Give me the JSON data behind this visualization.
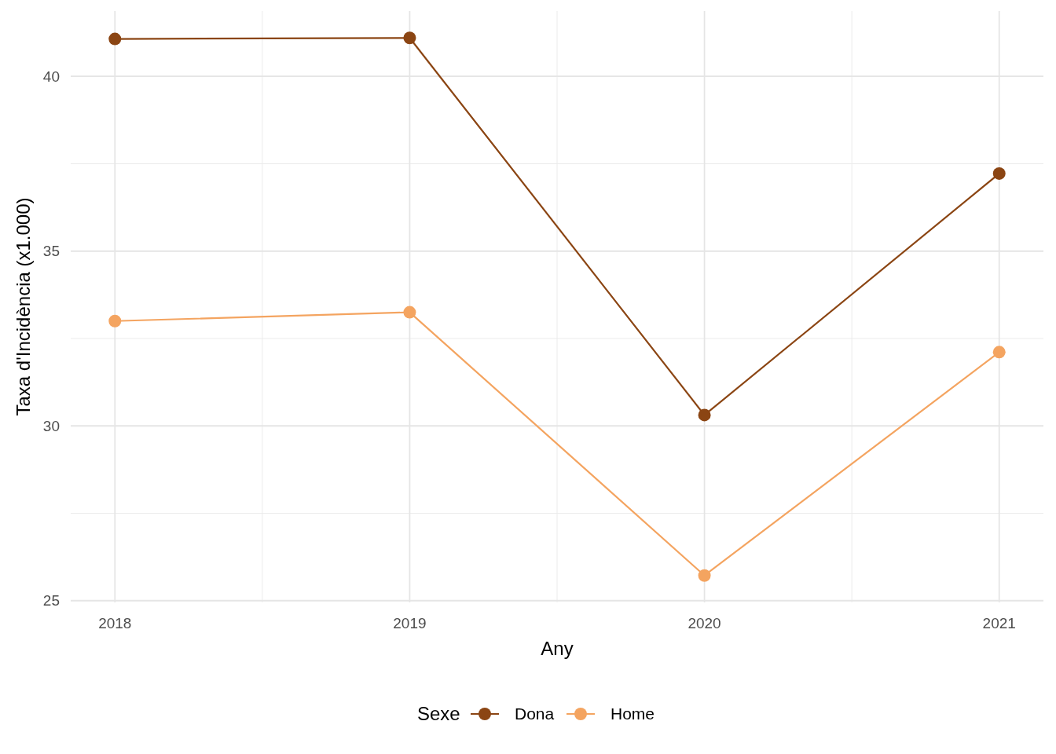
{
  "chart_data": {
    "type": "line",
    "xlabel": "Any",
    "ylabel": "Taxa d'Incidència (x1.000)",
    "legend_title": "Sexe",
    "x": [
      2018,
      2019,
      2020,
      2021
    ],
    "series": [
      {
        "name": "Dona",
        "color": "#8b4513",
        "values": [
          41.07,
          41.1,
          30.31,
          37.22
        ]
      },
      {
        "name": "Home",
        "color": "#f4a460",
        "values": [
          33.0,
          33.25,
          25.72,
          32.11
        ]
      }
    ],
    "xlim": [
      2017.85,
      2021.15
    ],
    "xticks": [
      2018,
      2019,
      2020,
      2021
    ],
    "ylim": [
      24.95,
      41.87
    ],
    "yticks": [
      25,
      30,
      35,
      40
    ],
    "grid": true,
    "legend": "bottom",
    "marker": "circle",
    "line_style": "solid"
  }
}
